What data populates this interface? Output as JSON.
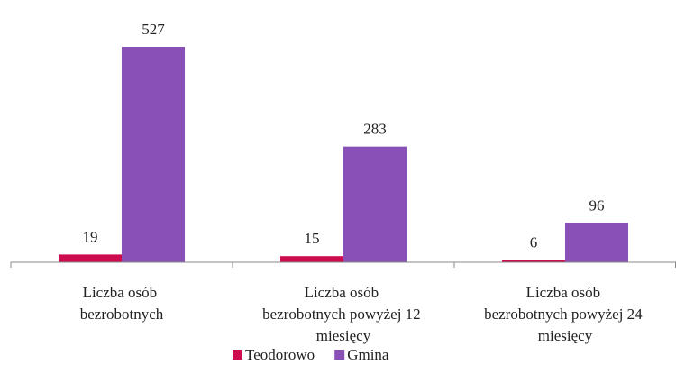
{
  "chart_data": {
    "type": "bar",
    "categories": [
      "Liczba osób bezrobotnych",
      "Liczba osób bezrobotnych powyżej 12 miesięcy",
      "Liczba osób bezrobotnych powyżej 24 miesięcy"
    ],
    "series": [
      {
        "name": "Teodorowo",
        "color": "#cc0c4e",
        "values": [
          19,
          15,
          6
        ]
      },
      {
        "name": "Gmina",
        "color": "#8950b7",
        "values": [
          527,
          283,
          96
        ]
      }
    ],
    "legend": "bottom"
  }
}
